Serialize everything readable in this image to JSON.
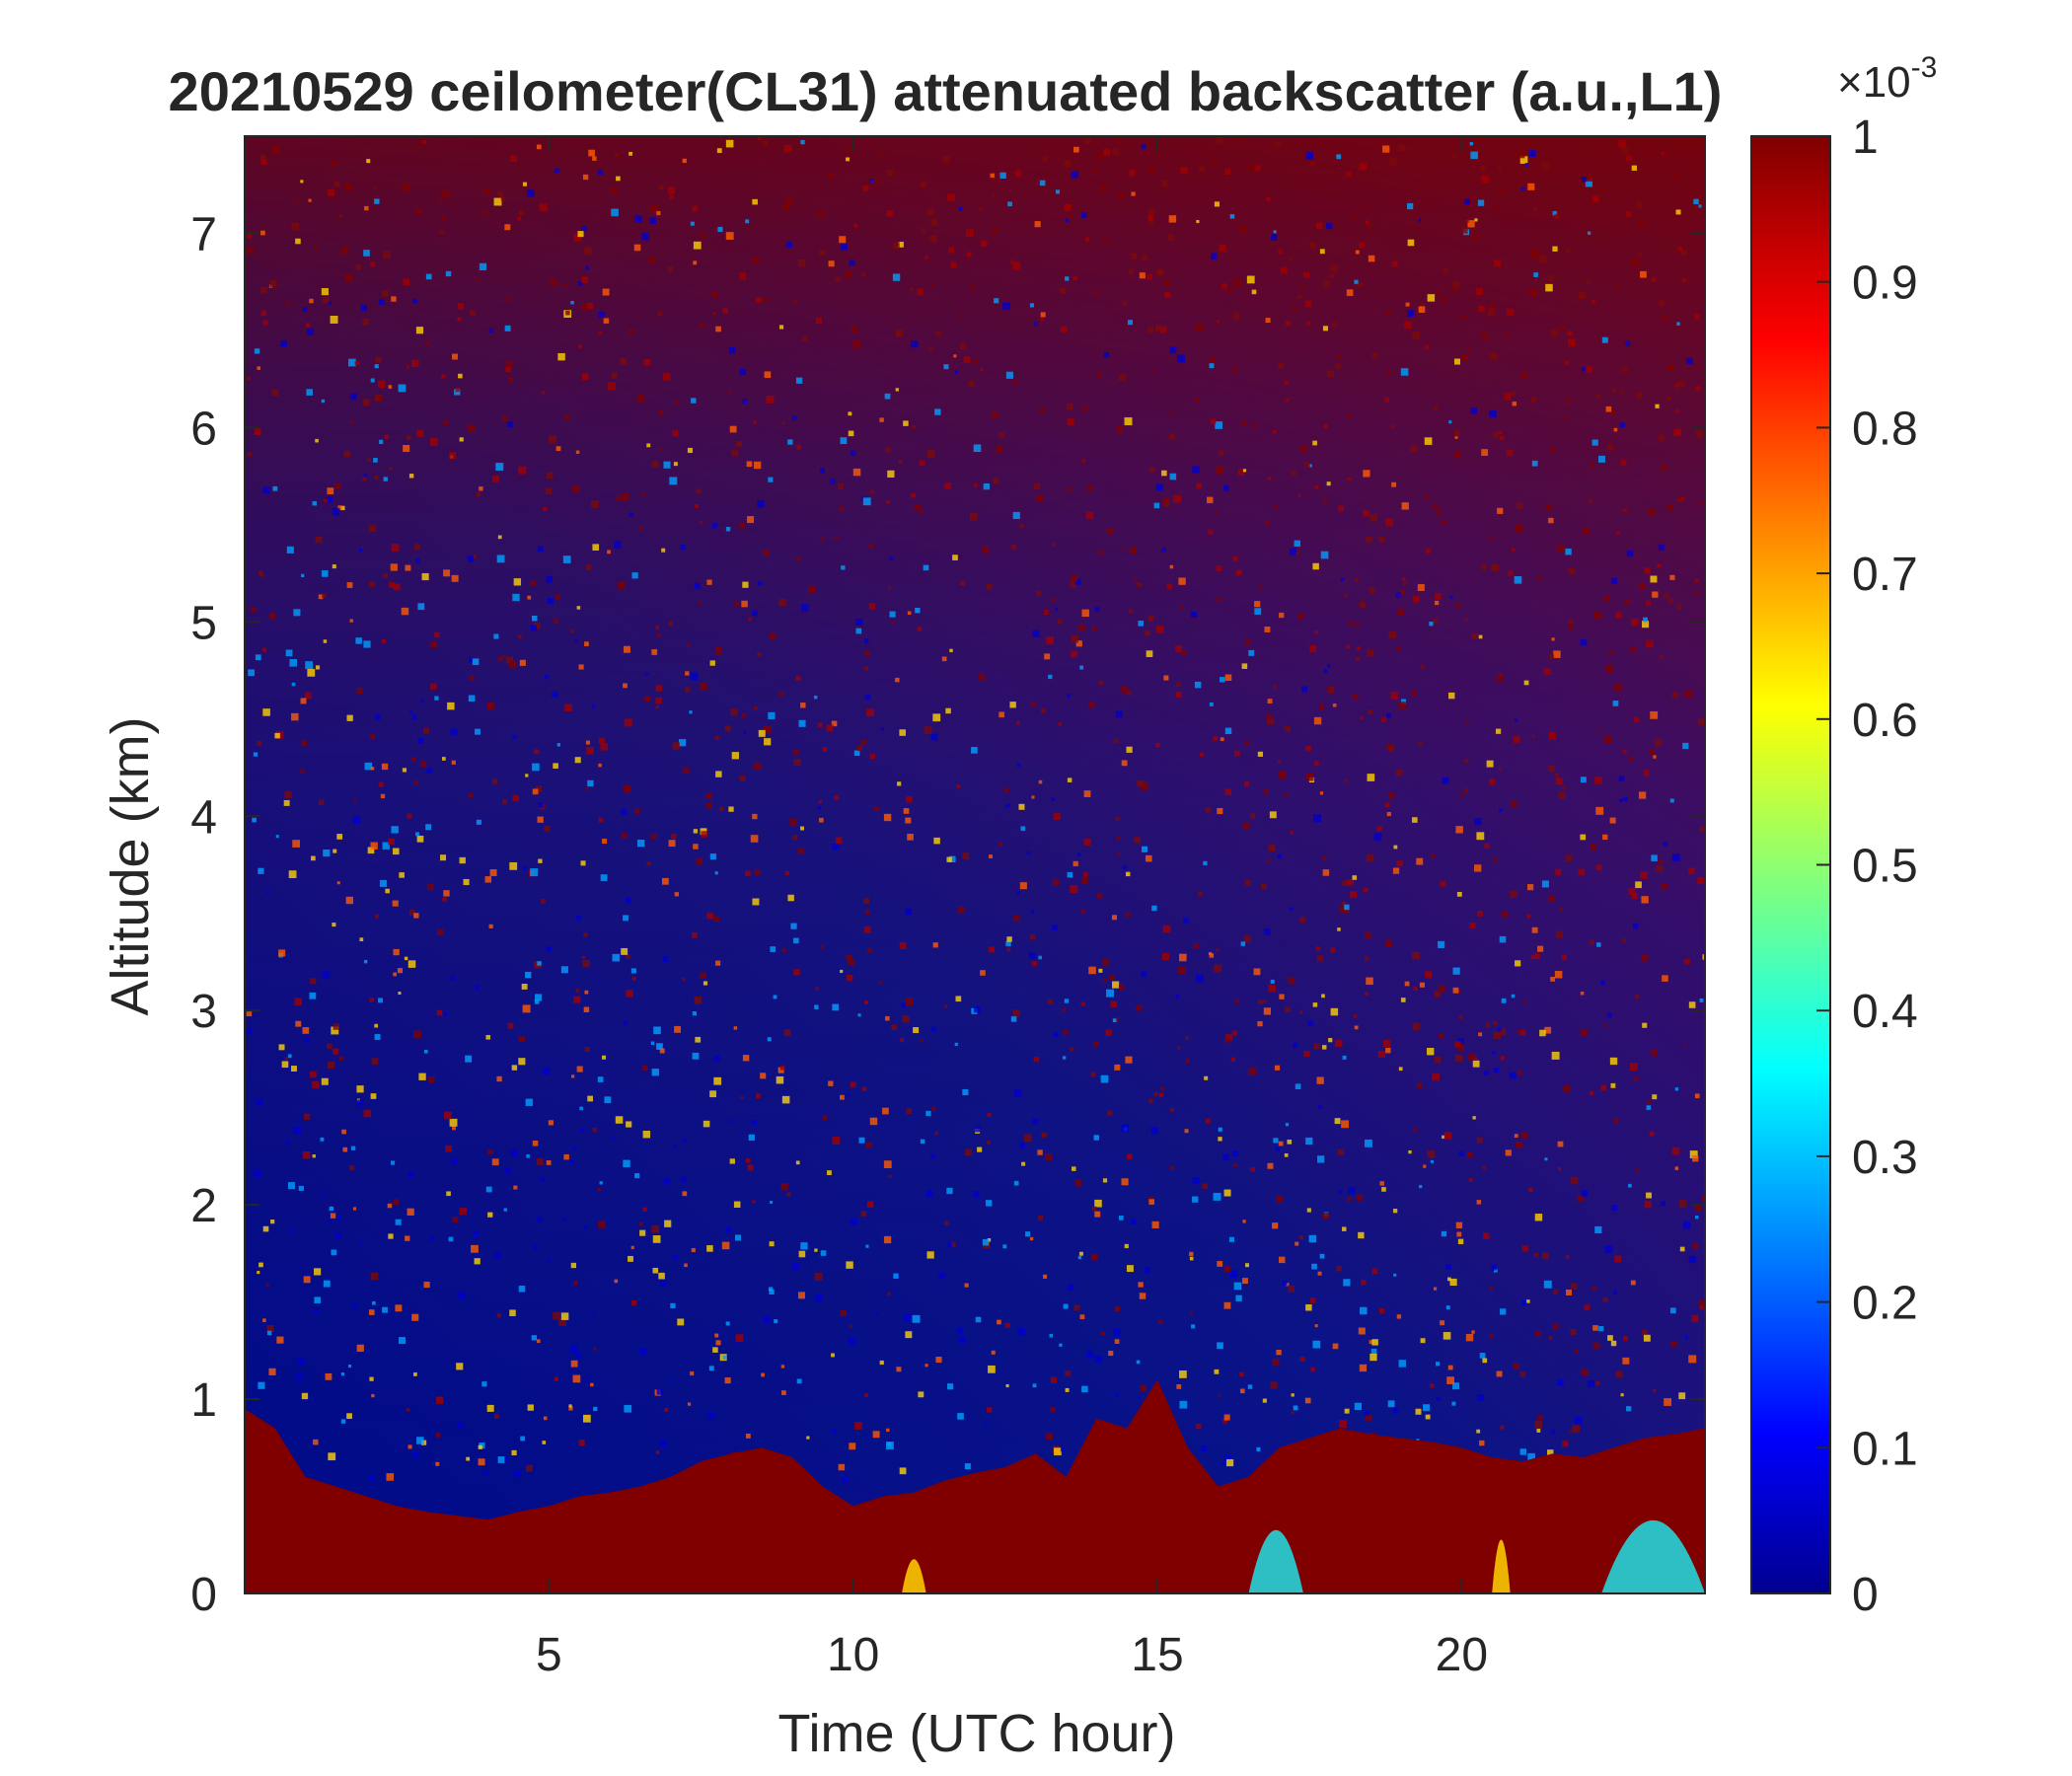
{
  "chart_data": {
    "type": "heatmap",
    "title": "20210529 ceilometer(CL31) attenuated backscatter (a.u.,L1)",
    "xlabel": "Time (UTC hour)",
    "ylabel": "Altitude (km)",
    "xlim": [
      0,
      24
    ],
    "ylim": [
      0,
      7.5
    ],
    "x_ticks": [
      5,
      10,
      15,
      20
    ],
    "y_ticks": [
      0,
      1,
      2,
      3,
      4,
      5,
      6,
      7
    ],
    "colorbar": {
      "colormap": "jet",
      "clim": [
        0,
        1
      ],
      "exponent_label": "×10",
      "exponent": "-3",
      "ticks": [
        0,
        0.1,
        0.2,
        0.3,
        0.4,
        0.5,
        0.6,
        0.7,
        0.8,
        0.9,
        1
      ]
    },
    "colors": {
      "low": "#00008f",
      "high": "#800000"
    },
    "boundary_layer_top_km": {
      "hours": [
        0,
        0.5,
        1,
        1.5,
        2,
        2.5,
        3,
        3.5,
        4,
        4.5,
        5,
        5.5,
        6,
        6.5,
        7,
        7.5,
        8,
        8.5,
        9,
        9.5,
        10,
        10.5,
        11,
        11.5,
        12,
        12.5,
        13,
        13.5,
        14,
        14.5,
        15,
        15.5,
        16,
        16.5,
        17,
        17.5,
        18,
        18.5,
        19,
        19.5,
        20,
        20.5,
        21,
        21.5,
        22,
        22.5,
        23,
        23.5,
        24
      ],
      "values": [
        0.95,
        0.85,
        0.6,
        0.55,
        0.5,
        0.45,
        0.42,
        0.4,
        0.38,
        0.42,
        0.45,
        0.5,
        0.52,
        0.55,
        0.6,
        0.68,
        0.72,
        0.75,
        0.7,
        0.55,
        0.45,
        0.5,
        0.52,
        0.58,
        0.62,
        0.65,
        0.72,
        0.6,
        0.9,
        0.85,
        1.1,
        0.75,
        0.55,
        0.6,
        0.75,
        0.8,
        0.85,
        0.82,
        0.8,
        0.78,
        0.75,
        0.7,
        0.68,
        0.72,
        0.7,
        0.75,
        0.8,
        0.82,
        0.85
      ]
    },
    "cloud_features": [
      {
        "start_hour": 16.5,
        "end_hour": 17.4,
        "top_km": 0.45,
        "color": "#20e0e8"
      },
      {
        "start_hour": 22.3,
        "end_hour": 24,
        "top_km": 0.55,
        "color": "#20e0e8"
      },
      {
        "start_hour": 20.5,
        "end_hour": 20.8,
        "top_km": 0.35,
        "color": "#ffd200"
      },
      {
        "start_hour": 10.8,
        "end_hour": 11.2,
        "top_km": 0.15,
        "color": "#ffd200"
      }
    ],
    "grid": false
  }
}
